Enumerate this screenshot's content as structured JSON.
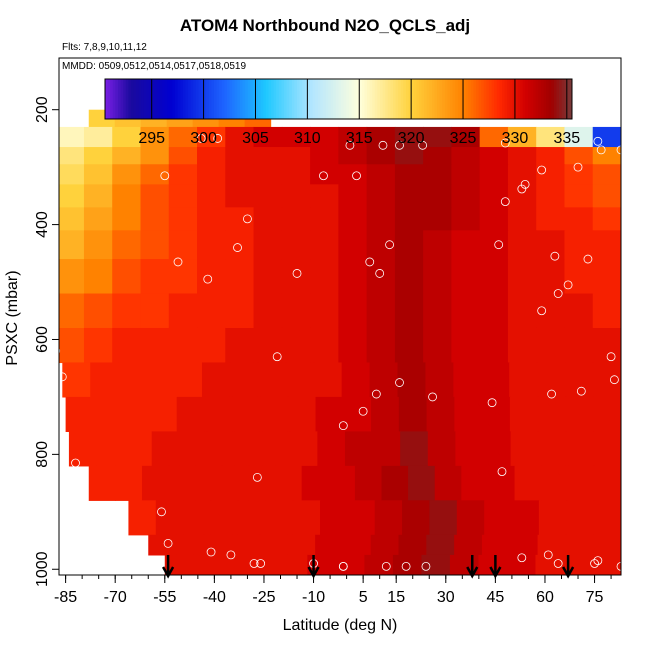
{
  "chart_data": {
    "type": "heatmap",
    "title": "ATOM4 Northbound N2O_QCLS_adj",
    "subtitle_flights": "Flts: 7,8,9,10,11,12",
    "subtitle_dates": "MMDD: 0509,0512,0514,0517,0518,0519",
    "xlabel": "Latitude (deg N)",
    "ylabel": "PSXC (mbar)",
    "xlim": [
      -87,
      83
    ],
    "ylim": [
      1010,
      110
    ],
    "x_ticks": [
      -85,
      -70,
      -55,
      -40,
      -25,
      -10,
      5,
      15,
      30,
      45,
      60,
      75
    ],
    "x_tick_labels": [
      "-85",
      "-70",
      "-55",
      "-40",
      "-25",
      "-10",
      "5",
      "15",
      "30",
      "45",
      "60",
      "75"
    ],
    "y_ticks": [
      200,
      400,
      600,
      800,
      1000
    ],
    "y_tick_labels": [
      "200",
      "400",
      "600",
      "800",
      "1000"
    ],
    "colorbar": {
      "min": 290.5,
      "max": 335.5,
      "ticks": [
        295,
        300,
        305,
        310,
        315,
        320,
        325,
        330,
        335
      ],
      "tick_labels": [
        "295",
        "300",
        "305",
        "310",
        "315",
        "320",
        "325",
        "330",
        "335"
      ],
      "colors": [
        "#7a1fe6",
        "#1a0a9e",
        "#0000d2",
        "#1e64ff",
        "#1ec8ff",
        "#b4e6ff",
        "#ffffdc",
        "#ffd23c",
        "#ff8200",
        "#ff2800",
        "#d20000",
        "#a00000",
        "#783c3c"
      ],
      "color_stops": [
        290.5,
        293,
        297,
        302,
        306,
        310.5,
        315,
        320,
        325,
        328.5,
        331,
        333.5,
        335.5
      ]
    },
    "arrow_latitudes": [
      -54,
      -10,
      38,
      45,
      67
    ],
    "sample_points": [
      [
        -87,
        210
      ],
      [
        -71,
        200
      ],
      [
        -44,
        250
      ],
      [
        -39,
        250
      ],
      [
        -26,
        205
      ],
      [
        -55,
        315
      ],
      [
        -7,
        315
      ],
      [
        1,
        262
      ],
      [
        3,
        315
      ],
      [
        11,
        262
      ],
      [
        16,
        262
      ],
      [
        23,
        262
      ],
      [
        48,
        258
      ],
      [
        76,
        255
      ],
      [
        83,
        270
      ],
      [
        77,
        270
      ],
      [
        70,
        300
      ],
      [
        59,
        305
      ],
      [
        -30,
        390
      ],
      [
        48,
        360
      ],
      [
        54,
        330
      ],
      [
        53,
        338
      ],
      [
        -51,
        465
      ],
      [
        -42,
        495
      ],
      [
        -33,
        440
      ],
      [
        -15,
        485
      ],
      [
        7,
        465
      ],
      [
        13,
        435
      ],
      [
        10,
        485
      ],
      [
        63,
        455
      ],
      [
        67,
        505
      ],
      [
        73,
        460
      ],
      [
        64,
        520
      ],
      [
        59,
        550
      ],
      [
        46,
        435
      ],
      [
        -88,
        620
      ],
      [
        -86,
        665
      ],
      [
        -21,
        630
      ],
      [
        -1,
        750
      ],
      [
        9,
        695
      ],
      [
        16,
        675
      ],
      [
        26,
        700
      ],
      [
        44,
        710
      ],
      [
        62,
        695
      ],
      [
        71,
        690
      ],
      [
        81,
        670
      ],
      [
        80,
        630
      ],
      [
        -82,
        815
      ],
      [
        -27,
        840
      ],
      [
        5,
        725
      ],
      [
        47,
        830
      ],
      [
        -56,
        900
      ],
      [
        -54,
        955
      ],
      [
        -41,
        970
      ],
      [
        -35,
        975
      ],
      [
        -28,
        990
      ],
      [
        -26,
        990
      ],
      [
        -10,
        990
      ],
      [
        -1,
        995
      ],
      [
        -1,
        995
      ],
      [
        12,
        995
      ],
      [
        18,
        995
      ],
      [
        24,
        995
      ],
      [
        53,
        980
      ],
      [
        61,
        975
      ],
      [
        64,
        990
      ],
      [
        75,
        990
      ],
      [
        76,
        985
      ],
      [
        83,
        995
      ]
    ],
    "heat_rows": [
      {
        "p": [
          200,
          230
        ],
        "lat": [
          -78,
          -23
        ],
        "v": [
          320,
          321,
          322,
          323,
          324,
          325,
          326
        ]
      },
      {
        "p": [
          230,
          265
        ],
        "lat": [
          -88,
          83
        ],
        "v": [
          316,
          317,
          320,
          324,
          326,
          328,
          330,
          331,
          331,
          331,
          332,
          333,
          334,
          334,
          333,
          326,
          322,
          318,
          313,
          300
        ]
      },
      {
        "p": [
          265,
          295
        ],
        "lat": [
          -88,
          83
        ],
        "v": [
          318,
          320,
          322,
          324,
          327,
          329,
          330,
          330,
          330,
          331,
          332,
          333,
          334,
          333,
          332,
          331,
          330,
          329,
          327,
          325
        ]
      },
      {
        "p": [
          295,
          330
        ],
        "lat": [
          -88,
          83
        ],
        "v": [
          319,
          321,
          324,
          326,
          328,
          329,
          330,
          330,
          330,
          331,
          331,
          332,
          333,
          333,
          332,
          331,
          330,
          329,
          328,
          327
        ]
      },
      {
        "p": [
          330,
          370
        ],
        "lat": [
          -88,
          83
        ],
        "v": [
          320,
          322,
          325,
          327,
          328,
          329,
          330,
          330,
          330,
          330,
          331,
          332,
          333,
          333,
          332,
          331,
          330,
          329,
          328,
          327
        ]
      },
      {
        "p": [
          370,
          410
        ],
        "lat": [
          -88,
          83
        ],
        "v": [
          321,
          323,
          325,
          327,
          328,
          329,
          329,
          330,
          330,
          330,
          331,
          332,
          333,
          333,
          332,
          331,
          330,
          329,
          329,
          328
        ]
      },
      {
        "p": [
          410,
          460
        ],
        "lat": [
          -88,
          83
        ],
        "v": [
          322,
          324,
          326,
          327,
          328,
          329,
          329,
          330,
          330,
          330,
          331,
          332,
          333,
          332,
          331,
          331,
          330,
          330,
          329,
          329
        ]
      },
      {
        "p": [
          460,
          520
        ],
        "lat": [
          -88,
          83
        ],
        "v": [
          324,
          325,
          327,
          328,
          328,
          329,
          329,
          330,
          330,
          330,
          331,
          332,
          333,
          332,
          331,
          331,
          330,
          330,
          329,
          329
        ]
      },
      {
        "p": [
          520,
          580
        ],
        "lat": [
          -88,
          83
        ],
        "v": [
          326,
          327,
          328,
          328,
          329,
          329,
          329,
          330,
          330,
          330,
          331,
          332,
          333,
          332,
          331,
          331,
          330,
          330,
          330,
          329
        ]
      },
      {
        "p": [
          580,
          640
        ],
        "lat": [
          -88,
          83
        ],
        "v": [
          327,
          328,
          329,
          329,
          329,
          329,
          330,
          330,
          330,
          330,
          331,
          332,
          333,
          332,
          331,
          331,
          330,
          330,
          330,
          330
        ]
      },
      {
        "p": [
          640,
          700
        ],
        "lat": [
          -86,
          83
        ],
        "v": [
          328,
          329,
          329,
          329,
          329,
          330,
          330,
          330,
          330,
          330,
          331,
          332,
          333,
          332,
          331,
          331,
          330,
          330,
          330,
          330
        ]
      },
      {
        "p": [
          700,
          760
        ],
        "lat": [
          -85,
          83
        ],
        "v": [
          329,
          329,
          329,
          329,
          330,
          330,
          330,
          330,
          330,
          331,
          331,
          332,
          333,
          332,
          331,
          331,
          330,
          330,
          330,
          330
        ]
      },
      {
        "p": [
          760,
          820
        ],
        "lat": [
          -84,
          83
        ],
        "v": [
          329,
          329,
          329,
          330,
          330,
          330,
          330,
          330,
          330,
          331,
          332,
          332,
          334,
          332,
          331,
          331,
          330,
          330,
          330,
          330
        ]
      },
      {
        "p": [
          820,
          880
        ],
        "lat": [
          -78,
          83
        ],
        "v": [
          329,
          329,
          330,
          330,
          330,
          330,
          330,
          330,
          331,
          331,
          332,
          333,
          334,
          332,
          331,
          331,
          330,
          330,
          330,
          330
        ]
      },
      {
        "p": [
          880,
          940
        ],
        "lat": [
          -66,
          83
        ],
        "v": [
          329,
          330,
          330,
          330,
          330,
          330,
          330,
          331,
          331,
          332,
          333,
          334,
          332,
          331,
          331,
          330,
          330,
          330
        ]
      },
      {
        "p": [
          940,
          975
        ],
        "lat": [
          -60,
          83
        ],
        "v": [
          330,
          330,
          330,
          330,
          330,
          330,
          331,
          331,
          332,
          333,
          334,
          332,
          331,
          331,
          330,
          330,
          330
        ]
      },
      {
        "p": [
          975,
          1010
        ],
        "lat": [
          -55,
          83
        ],
        "v": [
          330,
          330,
          330,
          330,
          330,
          331,
          331,
          332,
          333,
          334,
          332,
          331,
          331,
          330,
          330,
          330
        ]
      }
    ]
  }
}
